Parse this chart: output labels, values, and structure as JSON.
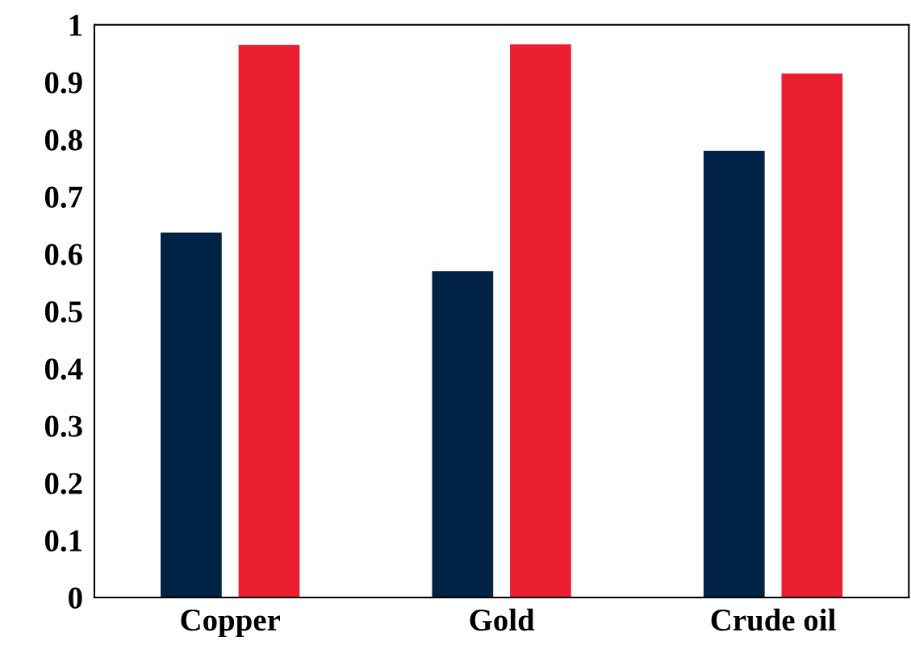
{
  "chart_data": {
    "type": "bar",
    "categories": [
      "Copper",
      "Gold",
      "Crude oil"
    ],
    "series": [
      {
        "color": "#002244",
        "values": [
          0.637,
          0.57,
          0.78
        ]
      },
      {
        "color": "#ec1f30",
        "values": [
          0.965,
          0.966,
          0.915
        ]
      }
    ],
    "ylim": [
      0,
      1
    ],
    "yticks": [
      0,
      0.1,
      0.2,
      0.3,
      0.4,
      0.5,
      0.6,
      0.7,
      0.8,
      0.9,
      1
    ],
    "grid": false
  }
}
